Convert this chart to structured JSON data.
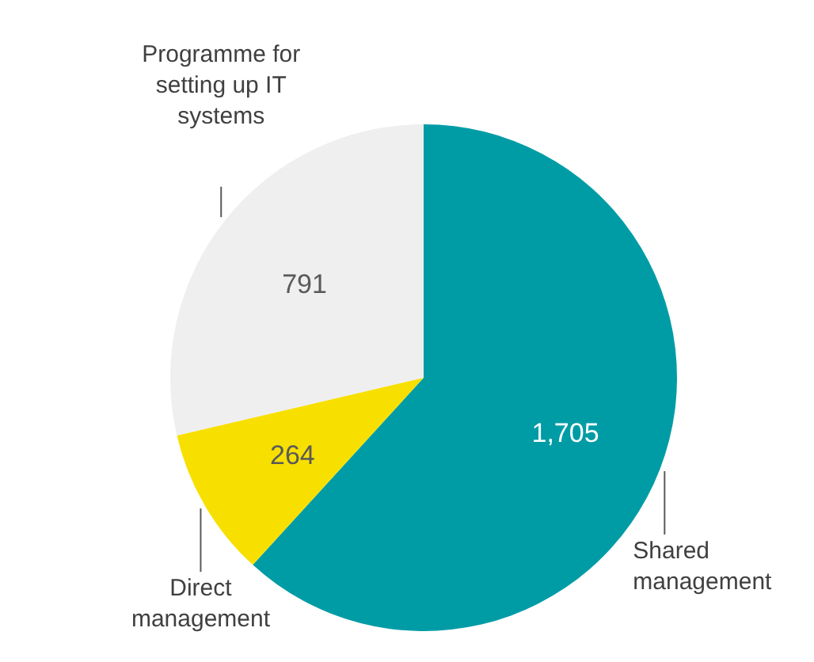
{
  "chart_data": {
    "type": "pie",
    "categories": [
      "Shared\nmanagement",
      "Direct\nmanagement",
      "Programme for\nsetting up IT\nsystems"
    ],
    "values": [
      1705,
      264,
      791
    ],
    "colors": [
      "#009ca6",
      "#f7e000",
      "#efefef"
    ],
    "value_labels": [
      "1,705",
      "264",
      "791"
    ]
  }
}
